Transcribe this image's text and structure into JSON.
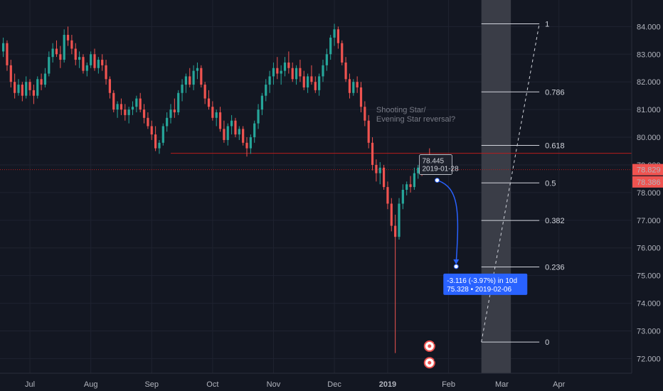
{
  "colors": {
    "background": "#131722",
    "up": "#26a69a",
    "down": "#ef5350",
    "axis_text": "#b2b5be",
    "fib_band": "#3a3d47",
    "level_line": "#b71c1c",
    "projection": "#2962ff"
  },
  "price_axis": {
    "min": 71.6,
    "max": 84.6,
    "ticks": [
      "84.000",
      "83.000",
      "82.000",
      "81.000",
      "80.000",
      "79.000",
      "78.000",
      "77.000",
      "76.000",
      "75.000",
      "74.000",
      "73.000",
      "72.000"
    ],
    "tick_values": [
      84,
      83,
      82,
      81,
      80,
      79,
      78,
      77,
      76,
      75,
      74,
      73,
      72
    ],
    "last_price": "78.829",
    "last_price_value": 78.829,
    "second_price": "78.386",
    "second_price_value": 78.386
  },
  "time_axis": {
    "labels": [
      "Jul",
      "Aug",
      "Sep",
      "Oct",
      "Nov",
      "Dec",
      "2019",
      "Feb",
      "Mar",
      "Apr"
    ],
    "bar_index": [
      7,
      23,
      39,
      55,
      71,
      87,
      101,
      117,
      131,
      146
    ]
  },
  "resistance_level": {
    "value": 79.42,
    "from_bar": 44,
    "to_bar": 156
  },
  "fib": {
    "top": 84.1,
    "bottom": 72.6,
    "from_bar": 126,
    "to_bar": 133,
    "levels": [
      {
        "ratio": 1,
        "label": "1"
      },
      {
        "ratio": 0.786,
        "label": "0.786"
      },
      {
        "ratio": 0.618,
        "label": "0.618"
      },
      {
        "ratio": 0.5,
        "label": "0.5"
      },
      {
        "ratio": 0.382,
        "label": "0.382"
      },
      {
        "ratio": 0.236,
        "label": "0.236"
      },
      {
        "ratio": 0,
        "label": "0"
      }
    ]
  },
  "annotation": {
    "line1": "Shooting Star/",
    "line2": "Evening Star reversal?",
    "bar": 98,
    "price": 80.9
  },
  "projection": {
    "start_bar": 114,
    "start_price": 78.445,
    "end_bar": 119,
    "end_price": 75.328,
    "start_label_price": "78.445",
    "start_label_date": "2019-01-28",
    "end_label_main": "-3.116 (-3.97%) in 10d",
    "end_label_sub": "75.328 • 2019-02-06"
  },
  "event_badges": [
    {
      "label": "4",
      "bar": 112,
      "price": 72.45
    },
    {
      "label": "3",
      "bar": 112,
      "price": 71.85
    }
  ],
  "chart_data": {
    "type": "candlestick",
    "x_axis": [
      "Jul",
      "Aug",
      "Sep",
      "Oct",
      "Nov",
      "Dec",
      "2019",
      "Feb",
      "Mar",
      "Apr"
    ],
    "ylim": [
      71.6,
      84.6
    ],
    "candles": [
      [
        83.1,
        83.6,
        82.9,
        83.4
      ],
      [
        83.4,
        83.5,
        82.4,
        82.6
      ],
      [
        82.6,
        82.8,
        81.8,
        82.0
      ],
      [
        82.0,
        82.3,
        81.4,
        81.6
      ],
      [
        81.6,
        82.1,
        81.5,
        81.9
      ],
      [
        81.9,
        82.0,
        81.3,
        81.5
      ],
      [
        81.5,
        82.2,
        81.4,
        82.0
      ],
      [
        82.0,
        82.1,
        81.5,
        81.7
      ],
      [
        81.7,
        81.9,
        81.2,
        81.5
      ],
      [
        81.5,
        82.2,
        81.4,
        82.1
      ],
      [
        82.1,
        82.3,
        81.7,
        81.9
      ],
      [
        81.9,
        82.5,
        81.8,
        82.3
      ],
      [
        82.3,
        83.1,
        82.2,
        82.9
      ],
      [
        82.9,
        83.4,
        82.7,
        83.2
      ],
      [
        83.2,
        83.5,
        82.9,
        83.0
      ],
      [
        83.0,
        83.3,
        82.5,
        82.8
      ],
      [
        82.8,
        83.9,
        82.7,
        83.7
      ],
      [
        83.7,
        84.0,
        83.3,
        83.5
      ],
      [
        83.5,
        83.7,
        83.0,
        83.2
      ],
      [
        83.2,
        83.4,
        82.6,
        82.8
      ],
      [
        82.8,
        83.1,
        82.5,
        82.9
      ],
      [
        82.9,
        83.0,
        82.3,
        82.4
      ],
      [
        82.4,
        82.7,
        82.2,
        82.6
      ],
      [
        82.6,
        83.1,
        82.5,
        83.0
      ],
      [
        83.0,
        83.2,
        82.4,
        82.5
      ],
      [
        82.5,
        82.9,
        82.3,
        82.8
      ],
      [
        82.8,
        83.0,
        82.4,
        82.6
      ],
      [
        82.6,
        82.8,
        81.9,
        82.1
      ],
      [
        82.1,
        82.2,
        81.4,
        81.6
      ],
      [
        81.6,
        81.7,
        80.9,
        81.0
      ],
      [
        81.0,
        81.3,
        80.7,
        81.2
      ],
      [
        81.2,
        81.4,
        80.8,
        81.0
      ],
      [
        81.0,
        81.2,
        80.6,
        80.8
      ],
      [
        80.8,
        81.1,
        80.5,
        81.0
      ],
      [
        81.0,
        81.3,
        80.8,
        81.1
      ],
      [
        81.1,
        81.5,
        80.9,
        81.4
      ],
      [
        81.4,
        81.6,
        80.9,
        81.0
      ],
      [
        81.0,
        81.2,
        80.5,
        80.7
      ],
      [
        80.7,
        80.9,
        80.3,
        80.4
      ],
      [
        80.4,
        80.6,
        79.9,
        80.1
      ],
      [
        80.1,
        80.4,
        79.5,
        79.6
      ],
      [
        79.6,
        79.9,
        79.4,
        79.8
      ],
      [
        79.8,
        80.5,
        79.7,
        80.4
      ],
      [
        80.4,
        80.9,
        80.2,
        80.7
      ],
      [
        80.7,
        81.2,
        80.5,
        81.0
      ],
      [
        81.0,
        81.4,
        80.7,
        80.9
      ],
      [
        80.9,
        81.7,
        80.8,
        81.6
      ],
      [
        81.6,
        82.1,
        81.3,
        81.9
      ],
      [
        81.9,
        82.3,
        81.6,
        82.2
      ],
      [
        82.2,
        82.5,
        81.8,
        81.9
      ],
      [
        81.9,
        82.6,
        81.7,
        82.4
      ],
      [
        82.4,
        82.7,
        82.1,
        82.5
      ],
      [
        82.5,
        82.6,
        81.8,
        81.9
      ],
      [
        81.9,
        82.0,
        81.2,
        81.4
      ],
      [
        81.4,
        81.7,
        81.0,
        81.1
      ],
      [
        81.1,
        81.3,
        80.6,
        80.7
      ],
      [
        80.7,
        81.0,
        80.4,
        80.9
      ],
      [
        80.9,
        81.1,
        80.2,
        80.3
      ],
      [
        80.3,
        80.6,
        79.8,
        79.9
      ],
      [
        79.9,
        80.5,
        79.7,
        80.4
      ],
      [
        80.4,
        80.8,
        80.1,
        80.6
      ],
      [
        80.6,
        80.7,
        80.0,
        80.1
      ],
      [
        80.1,
        80.4,
        79.9,
        80.3
      ],
      [
        80.3,
        80.4,
        79.7,
        79.8
      ],
      [
        79.8,
        80.0,
        79.3,
        79.6
      ],
      [
        79.6,
        80.1,
        79.4,
        80.0
      ],
      [
        80.0,
        80.6,
        79.8,
        80.5
      ],
      [
        80.5,
        81.2,
        80.3,
        81.0
      ],
      [
        81.0,
        81.6,
        80.8,
        81.5
      ],
      [
        81.5,
        82.1,
        81.3,
        81.9
      ],
      [
        81.9,
        82.4,
        81.6,
        82.2
      ],
      [
        82.2,
        82.7,
        81.9,
        82.5
      ],
      [
        82.5,
        82.9,
        82.1,
        82.3
      ],
      [
        82.3,
        82.6,
        81.9,
        82.4
      ],
      [
        82.4,
        82.9,
        82.2,
        82.7
      ],
      [
        82.7,
        83.1,
        82.3,
        82.5
      ],
      [
        82.5,
        82.7,
        82.0,
        82.1
      ],
      [
        82.1,
        82.6,
        81.9,
        82.5
      ],
      [
        82.5,
        82.8,
        82.0,
        82.2
      ],
      [
        82.2,
        82.4,
        81.7,
        81.8
      ],
      [
        81.8,
        82.3,
        81.6,
        82.2
      ],
      [
        82.2,
        82.6,
        81.9,
        82.0
      ],
      [
        82.0,
        82.2,
        81.6,
        81.7
      ],
      [
        81.7,
        82.3,
        81.5,
        82.2
      ],
      [
        82.2,
        82.8,
        82.0,
        82.6
      ],
      [
        82.6,
        83.2,
        82.4,
        83.0
      ],
      [
        83.0,
        83.7,
        82.8,
        83.6
      ],
      [
        83.6,
        84.1,
        83.3,
        83.9
      ],
      [
        83.9,
        84.0,
        83.2,
        83.4
      ],
      [
        83.4,
        83.5,
        82.6,
        82.7
      ],
      [
        82.7,
        82.9,
        82.0,
        82.1
      ],
      [
        82.1,
        82.3,
        81.4,
        81.6
      ],
      [
        81.6,
        82.1,
        81.5,
        82.0
      ],
      [
        82.0,
        82.2,
        81.6,
        81.8
      ],
      [
        81.8,
        82.0,
        80.9,
        81.1
      ],
      [
        81.1,
        81.3,
        80.4,
        80.6
      ],
      [
        80.6,
        80.8,
        79.6,
        79.8
      ],
      [
        79.8,
        80.0,
        78.8,
        79.0
      ],
      [
        79.0,
        79.2,
        78.4,
        78.7
      ],
      [
        78.7,
        79.1,
        78.3,
        78.9
      ],
      [
        78.9,
        79.0,
        78.1,
        78.2
      ],
      [
        78.2,
        78.4,
        77.4,
        77.6
      ],
      [
        77.6,
        77.8,
        76.6,
        76.8
      ],
      [
        76.8,
        77.2,
        72.2,
        76.4
      ],
      [
        76.4,
        77.8,
        76.3,
        77.6
      ],
      [
        77.6,
        78.3,
        77.4,
        78.1
      ],
      [
        78.1,
        78.4,
        77.9,
        78.3
      ],
      [
        78.3,
        78.6,
        78.0,
        78.2
      ],
      [
        78.2,
        78.9,
        78.1,
        78.7
      ],
      [
        78.7,
        79.0,
        78.5,
        78.9
      ],
      [
        78.9,
        79.2,
        78.6,
        78.8
      ],
      [
        78.8,
        79.3,
        78.7,
        79.1
      ],
      [
        79.1,
        79.6,
        78.9,
        78.9
      ]
    ]
  }
}
